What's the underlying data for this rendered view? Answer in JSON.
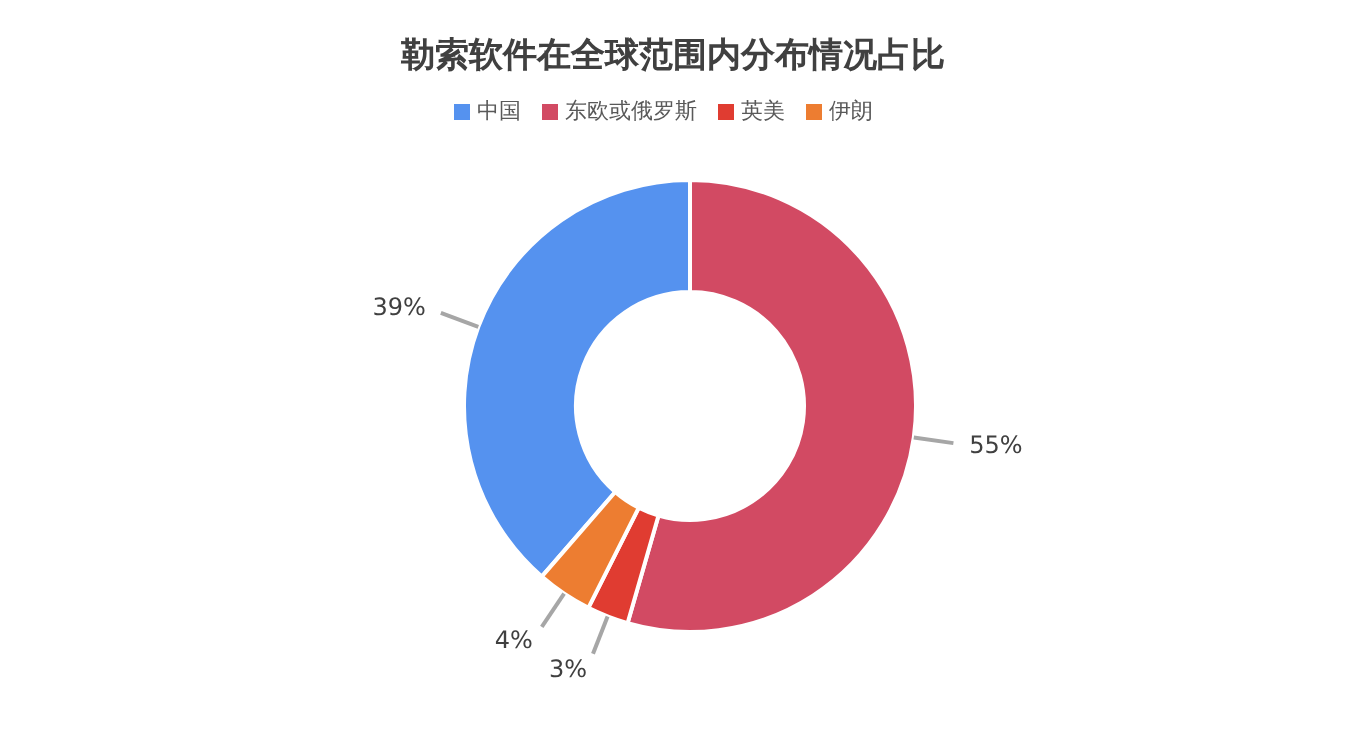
{
  "chart_data": {
    "type": "donut",
    "title": "勒索软件在全球范围内分布情况占比",
    "categories": [
      "中国",
      "东欧或俄罗斯",
      "英美",
      "伊朗"
    ],
    "values": [
      39,
      55,
      3,
      4
    ],
    "colors": [
      "#5592ef",
      "#d24a63",
      "#e03c31",
      "#ed7d31"
    ],
    "value_labels": [
      "39%",
      "55%",
      "3%",
      "4%"
    ],
    "legend": "top"
  }
}
